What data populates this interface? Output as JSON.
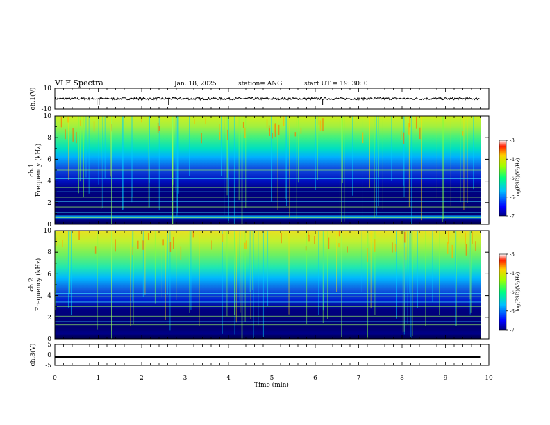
{
  "header": {
    "title": "VLF Spectra",
    "date": "Jan. 18, 2025",
    "station": "station= ANG",
    "start": "start  UT =   19: 30: 0"
  },
  "chart_data": [
    {
      "type": "line",
      "panel": "ch1-waveform",
      "ylabel": "ch.1(V)",
      "ylim": [
        -10,
        10
      ],
      "yticks": [
        "10",
        "-10"
      ],
      "xlim": [
        0,
        10
      ],
      "trace_level": 0,
      "trace_extent_min": [
        0,
        9.8
      ],
      "spikes_min": [
        0.97,
        1.02,
        2.62,
        6.17
      ]
    },
    {
      "type": "heatmap",
      "panel": "ch1-spectrogram",
      "ylabel": [
        "ch.1",
        "Frequency (kHz)"
      ],
      "ylim": [
        0,
        10
      ],
      "yticks": [
        "0",
        "2",
        "4",
        "6",
        "8",
        "10"
      ],
      "xlim": [
        0,
        10
      ],
      "colorbar": {
        "label": "log(PSD)(V²/Hz)",
        "range": [
          -7,
          -3
        ],
        "ticks": [
          "-3",
          "-4",
          "-5",
          "-6",
          "-7"
        ]
      },
      "strong_lines_khz": [
        0.6,
        1.1,
        1.6,
        2.1,
        2.5,
        3.0,
        3.4,
        4.2,
        5.0
      ],
      "strong_columns_min": [
        1.3,
        2.7,
        4.3,
        6.6
      ]
    },
    {
      "type": "heatmap",
      "panel": "ch2-spectrogram",
      "ylabel": [
        "ch.2",
        "Frequency (kHz)"
      ],
      "ylim": [
        0,
        10
      ],
      "yticks": [
        "0",
        "2",
        "4",
        "6",
        "8",
        "10"
      ],
      "xlim": [
        0,
        10
      ],
      "colorbar": {
        "label": "log(PSD)(V²/Hz)",
        "range": [
          -7,
          -3
        ],
        "ticks": [
          "-3",
          "-4",
          "-5",
          "-6",
          "-7"
        ]
      },
      "strong_lines_khz": [
        1.3,
        1.6,
        2.1,
        2.4,
        3.0,
        3.4,
        3.9,
        4.2
      ],
      "strong_columns_min": [
        1.3,
        4.3,
        6.6
      ]
    },
    {
      "type": "line",
      "panel": "ch3-waveform",
      "ylabel": "ch.3(V)",
      "ylim": [
        -5,
        5
      ],
      "yticks": [
        "5",
        "0",
        "-5"
      ],
      "xlim": [
        0,
        10
      ],
      "trace_level": -1,
      "trace_extent_min": [
        0,
        9.8
      ]
    }
  ],
  "xaxis": {
    "label": "Time (min)",
    "ticks": [
      "0",
      "1",
      "2",
      "3",
      "4",
      "5",
      "6",
      "7",
      "8",
      "9",
      "10"
    ]
  }
}
